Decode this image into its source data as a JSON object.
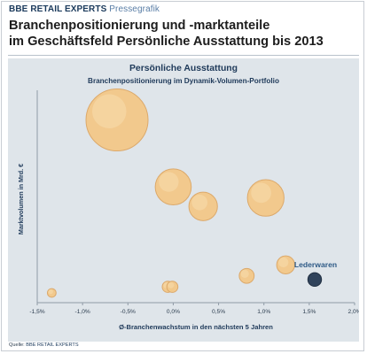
{
  "header": {
    "brand_bold": "BBE",
    "brand_name": "RETAIL EXPERTS",
    "brand_tag": "Pressegrafik",
    "headline_line1": "Branchenpositionierung und -marktanteile",
    "headline_line2": "im Geschäftsfeld Persönliche Ausstattung bis 2013"
  },
  "footer": {
    "source_prefix": "Quelle:",
    "source_org": "BBE RETAIL EXPERTS"
  },
  "colors": {
    "panel": "#dfe5ea",
    "bubble_fill": "#f3c98a",
    "bubble_stroke": "#dca868",
    "highlight_fill": "#2b3e57",
    "label_blue": "#2e5a86"
  },
  "chart_data": {
    "type": "bubble",
    "title": "Persönliche Ausstattung",
    "subtitle": "Branchenpositionierung im Dynamik-Volumen-Portfolio",
    "xlabel": "Ø-Branchenwachstum in den nächsten 5 Jahren",
    "ylabel": "Marktvolumen in Mrd. €",
    "xlim": [
      -1.5,
      2.0
    ],
    "x_tick_labels": [
      "-1,5%",
      "-1,0%",
      "-0,5%",
      "0,0%",
      "0,5%",
      "1,0%",
      "1,5%",
      "2,0%"
    ],
    "y_axis_tick_labels_shown": false,
    "grid": false,
    "series": [
      {
        "points": [
          {
            "x": -0.62,
            "y": 15.0,
            "size": 1.0
          },
          {
            "x": 0.0,
            "y": 9.5,
            "size": 0.58
          },
          {
            "x": 0.33,
            "y": 7.9,
            "size": 0.46
          },
          {
            "x": 1.02,
            "y": 8.6,
            "size": 0.59
          },
          {
            "x": 0.81,
            "y": 2.2,
            "size": 0.24
          },
          {
            "x": 1.24,
            "y": 3.1,
            "size": 0.29
          },
          {
            "x": 1.56,
            "y": 1.9,
            "size": 0.22,
            "label": "Lederwaren",
            "highlight": true
          },
          {
            "x": -0.06,
            "y": 1.3,
            "size": 0.18
          },
          {
            "x": -0.01,
            "y": 1.3,
            "size": 0.18
          },
          {
            "x": -1.34,
            "y": 0.8,
            "size": 0.14
          }
        ]
      }
    ]
  }
}
